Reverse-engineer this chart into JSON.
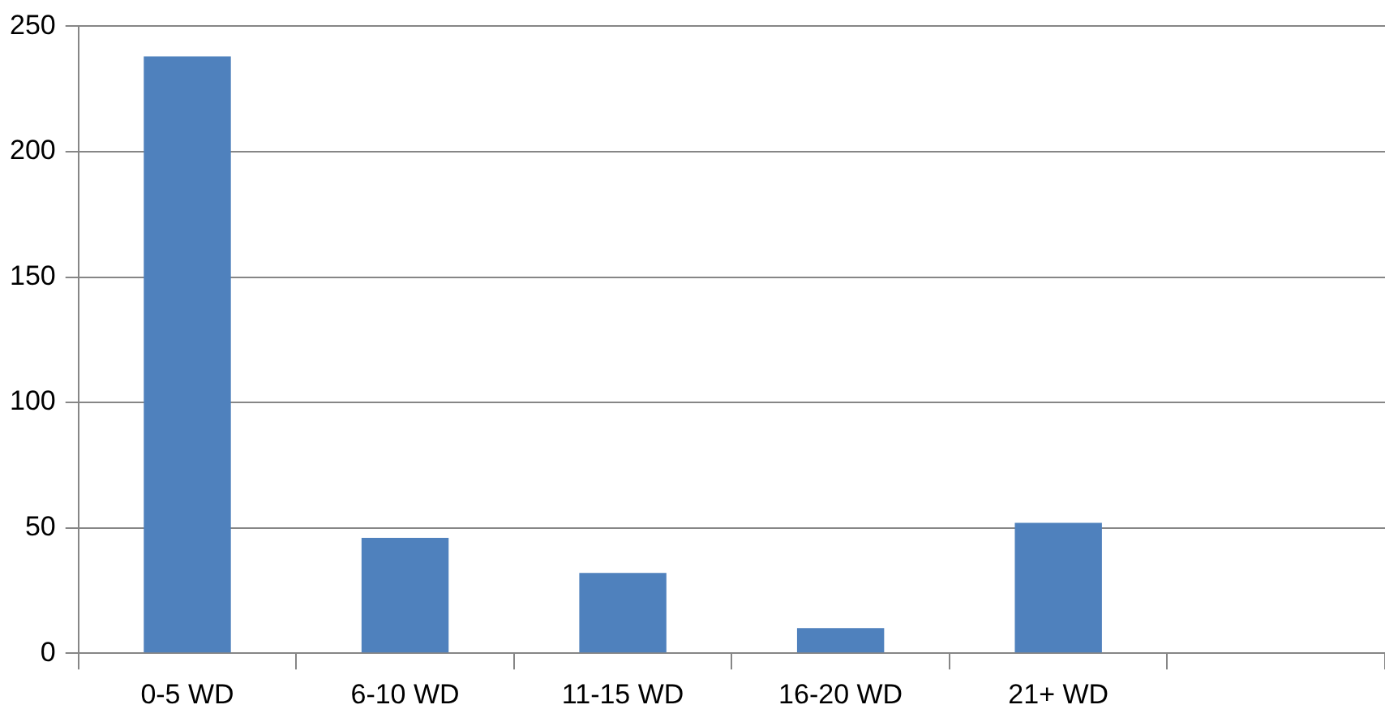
{
  "chart_data": {
    "type": "bar",
    "categories": [
      "0-5 WD",
      "6-10 WD",
      "11-15 WD",
      "16-20 WD",
      "21+ WD",
      null
    ],
    "values": [
      238,
      46,
      32,
      10,
      52,
      null
    ],
    "color": "#4f81bd",
    "ylim": [
      0,
      250
    ],
    "yticks": [
      0,
      50,
      100,
      150,
      200,
      250
    ],
    "grid": "y",
    "legend": false
  }
}
